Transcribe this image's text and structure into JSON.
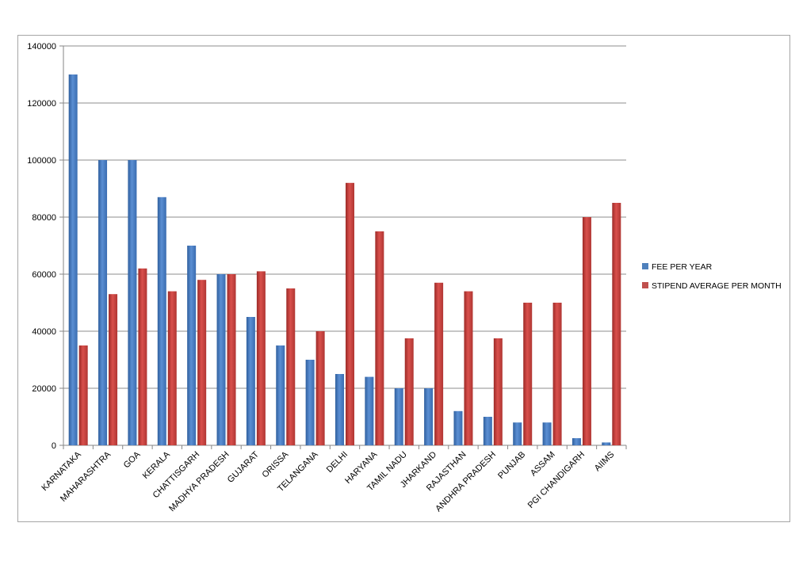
{
  "chart_data": {
    "type": "bar",
    "title": "",
    "xlabel": "",
    "ylabel": "",
    "ylim": [
      0,
      140000
    ],
    "yticks": [
      0,
      20000,
      40000,
      60000,
      80000,
      100000,
      120000,
      140000
    ],
    "grid": true,
    "legend_position": "right",
    "categories": [
      "KARNATAKA",
      "MAHARASHTRA",
      "GOA",
      "KERALA",
      "CHATTISGARH",
      "MADHYA PRADESH",
      "GUJARAT",
      "ORISSA",
      "TELANGANA",
      "DELHI",
      "HARYANA",
      "TAMIL NADU",
      "JHARKAND",
      "RAJASTHAN",
      "ANDHRA PRADESH",
      "PUNJAB",
      "ASSAM",
      "PGI CHANDIGARH",
      "AIIMS"
    ],
    "series": [
      {
        "name": "FEE PER YEAR",
        "color": "#4f81bd",
        "values": [
          130000,
          100000,
          100000,
          87000,
          70000,
          60000,
          45000,
          35000,
          30000,
          25000,
          24000,
          20000,
          20000,
          12000,
          10000,
          8000,
          8000,
          2500,
          1000
        ]
      },
      {
        "name": "STIPEND AVERAGE PER MONTH",
        "color": "#c0504d",
        "values": [
          35000,
          53000,
          62000,
          54000,
          58000,
          60000,
          61000,
          55000,
          40000,
          92000,
          75000,
          37500,
          57000,
          54000,
          37500,
          50000,
          50000,
          80000,
          85000
        ]
      }
    ]
  }
}
